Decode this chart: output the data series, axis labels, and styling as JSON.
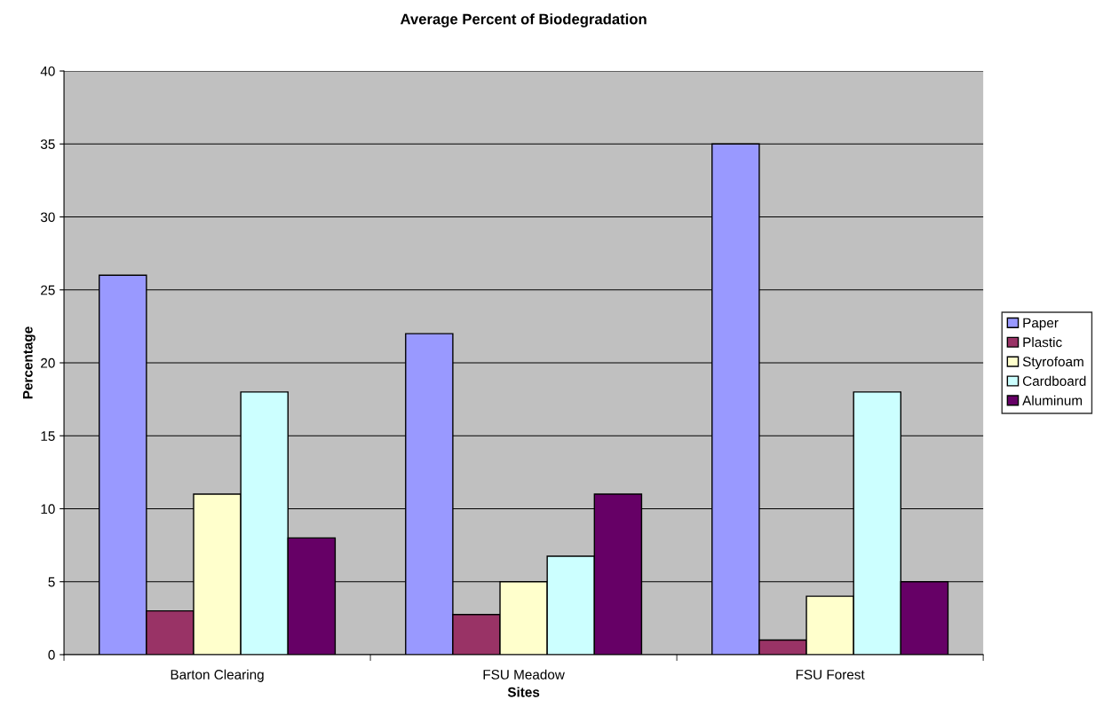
{
  "chart_data": {
    "type": "bar",
    "title": "Average Percent of Biodegradation",
    "xlabel": "Sites",
    "ylabel": "Percentage",
    "categories": [
      "Barton Clearing",
      "FSU Meadow",
      "FSU Forest"
    ],
    "series": [
      {
        "name": "Paper",
        "color": "#9999ff",
        "values": [
          26,
          22,
          35
        ]
      },
      {
        "name": "Plastic",
        "color": "#993366",
        "values": [
          3,
          2.75,
          1
        ]
      },
      {
        "name": "Styrofoam",
        "color": "#ffffcc",
        "values": [
          11,
          5,
          4
        ]
      },
      {
        "name": "Cardboard",
        "color": "#ccffff",
        "values": [
          18,
          6.75,
          18
        ]
      },
      {
        "name": "Aluminum",
        "color": "#660066",
        "values": [
          8,
          11,
          5
        ]
      }
    ],
    "ylim": [
      0,
      40
    ],
    "yticks": [
      0,
      5,
      10,
      15,
      20,
      25,
      30,
      35,
      40
    ],
    "grid": "y",
    "legend": "right"
  }
}
